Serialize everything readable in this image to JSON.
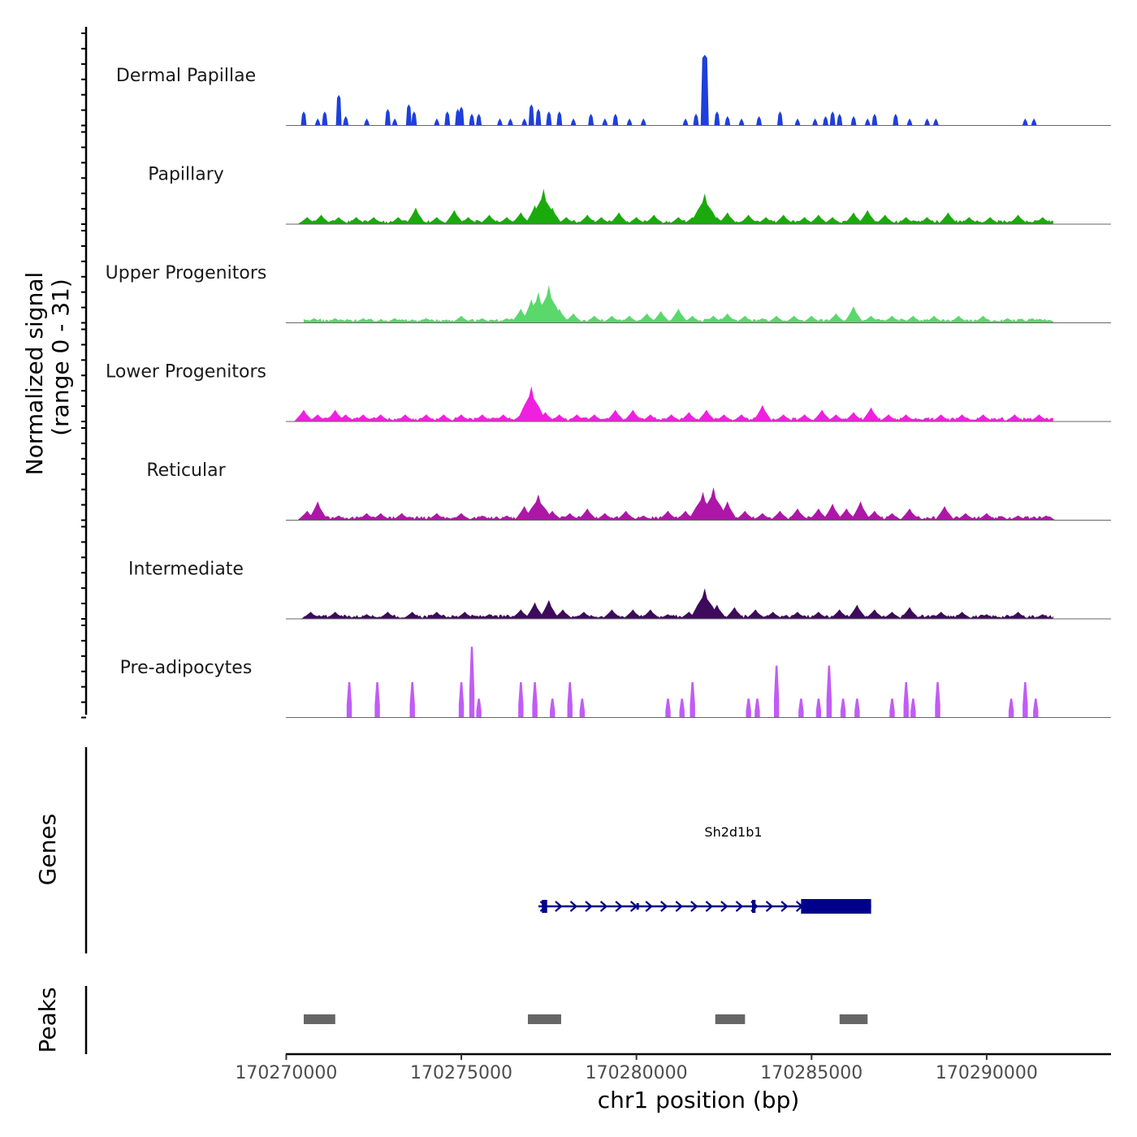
{
  "chart_data": {
    "type": "area",
    "title": "",
    "ylabel_line1": "Normalized signal",
    "ylabel_line2": "(range 0 - 31)",
    "ylim": [
      0,
      31
    ],
    "xlabel": "chr1 position (bp)",
    "xlim": [
      170269990,
      170293550
    ],
    "xticks": [
      170270000,
      170275000,
      170280000,
      170285000,
      170290000
    ],
    "xtick_labels": [
      "170270000",
      "170275000",
      "170280000",
      "170285000",
      "170290000"
    ],
    "genes_label": "Genes",
    "peaks_label": "Peaks",
    "series": [
      {
        "name": "Dermal Papillae",
        "color": "#1E3FDB",
        "style": "sparse",
        "values": [
          [
            170271100,
            6
          ],
          [
            170271500,
            13
          ],
          [
            170271700,
            4
          ],
          [
            170272300,
            3
          ],
          [
            170272900,
            7
          ],
          [
            170273100,
            3
          ],
          [
            170273500,
            9
          ],
          [
            170273650,
            6
          ],
          [
            170274300,
            3
          ],
          [
            170274600,
            6
          ],
          [
            170274900,
            7
          ],
          [
            170275000,
            8
          ],
          [
            170275300,
            5
          ],
          [
            170275500,
            5
          ],
          [
            170276100,
            3
          ],
          [
            170276400,
            3
          ],
          [
            170276800,
            3
          ],
          [
            170277000,
            9
          ],
          [
            170277200,
            7
          ],
          [
            170277500,
            6
          ],
          [
            170277800,
            6
          ],
          [
            170278200,
            3
          ],
          [
            170278700,
            5
          ],
          [
            170279100,
            3
          ],
          [
            170279400,
            5
          ],
          [
            170279800,
            3
          ],
          [
            170280200,
            3
          ],
          [
            170281400,
            3
          ],
          [
            170281700,
            5
          ],
          [
            170281950,
            30
          ],
          [
            170282300,
            6
          ],
          [
            170282600,
            4
          ],
          [
            170283000,
            3
          ],
          [
            170283500,
            4
          ],
          [
            170284100,
            6
          ],
          [
            170284600,
            3
          ],
          [
            170285100,
            3
          ],
          [
            170285400,
            4
          ],
          [
            170285600,
            6
          ],
          [
            170285800,
            5
          ],
          [
            170286200,
            4
          ],
          [
            170286600,
            3
          ],
          [
            170286800,
            5
          ],
          [
            170287400,
            5
          ],
          [
            170287800,
            3
          ],
          [
            170288300,
            3
          ],
          [
            170288550,
            3
          ],
          [
            170291100,
            3
          ],
          [
            170291350,
            3
          ],
          [
            170270500,
            6
          ],
          [
            170270900,
            3
          ]
        ]
      },
      {
        "name": "Papillary",
        "color": "#1AAA0C",
        "style": "dense",
        "values": [
          [
            170270600,
            3
          ],
          [
            170271000,
            4
          ],
          [
            170271500,
            3
          ],
          [
            170272000,
            3
          ],
          [
            170272500,
            3
          ],
          [
            170273200,
            3
          ],
          [
            170273700,
            7
          ],
          [
            170274300,
            3
          ],
          [
            170274800,
            6
          ],
          [
            170275200,
            3
          ],
          [
            170275800,
            4
          ],
          [
            170276300,
            3
          ],
          [
            170276700,
            5
          ],
          [
            170277100,
            8
          ],
          [
            170277350,
            15
          ],
          [
            170277600,
            7
          ],
          [
            170278000,
            3
          ],
          [
            170278600,
            4
          ],
          [
            170279000,
            3
          ],
          [
            170279500,
            5
          ],
          [
            170280000,
            3
          ],
          [
            170280500,
            4
          ],
          [
            170281200,
            3
          ],
          [
            170281600,
            3
          ],
          [
            170281950,
            13
          ],
          [
            170282300,
            3
          ],
          [
            170282600,
            5
          ],
          [
            170283200,
            4
          ],
          [
            170283700,
            3
          ],
          [
            170284200,
            4
          ],
          [
            170284800,
            3
          ],
          [
            170285200,
            4
          ],
          [
            170285600,
            3
          ],
          [
            170286200,
            5
          ],
          [
            170286600,
            6
          ],
          [
            170287100,
            4
          ],
          [
            170287700,
            3
          ],
          [
            170288300,
            3
          ],
          [
            170288900,
            5
          ],
          [
            170289500,
            3
          ],
          [
            170290100,
            3
          ],
          [
            170290900,
            4
          ],
          [
            170291600,
            3
          ]
        ]
      },
      {
        "name": "Upper Progenitors",
        "color": "#5AD86B",
        "style": "dense",
        "values": [
          [
            170270800,
            2
          ],
          [
            170271400,
            2
          ],
          [
            170272200,
            2
          ],
          [
            170273100,
            2
          ],
          [
            170274000,
            2
          ],
          [
            170275000,
            3
          ],
          [
            170275600,
            2
          ],
          [
            170276300,
            2
          ],
          [
            170276700,
            6
          ],
          [
            170277000,
            10
          ],
          [
            170277200,
            13
          ],
          [
            170277500,
            16
          ],
          [
            170277800,
            6
          ],
          [
            170278200,
            4
          ],
          [
            170278800,
            3
          ],
          [
            170279300,
            3
          ],
          [
            170279800,
            3
          ],
          [
            170280300,
            4
          ],
          [
            170280700,
            5
          ],
          [
            170281200,
            6
          ],
          [
            170281600,
            3
          ],
          [
            170282200,
            3
          ],
          [
            170282600,
            4
          ],
          [
            170283100,
            3
          ],
          [
            170283600,
            2
          ],
          [
            170284000,
            3
          ],
          [
            170284500,
            3
          ],
          [
            170285000,
            3
          ],
          [
            170285700,
            4
          ],
          [
            170286200,
            7
          ],
          [
            170286700,
            3
          ],
          [
            170287300,
            3
          ],
          [
            170287900,
            3
          ],
          [
            170288500,
            3
          ],
          [
            170289200,
            3
          ],
          [
            170289900,
            3
          ],
          [
            170290600,
            2
          ],
          [
            170291300,
            2
          ]
        ]
      },
      {
        "name": "Lower Progenitors",
        "color": "#F020E0",
        "style": "dense",
        "values": [
          [
            170270500,
            5
          ],
          [
            170270900,
            3
          ],
          [
            170271400,
            5
          ],
          [
            170271700,
            3
          ],
          [
            170272200,
            3
          ],
          [
            170272700,
            3
          ],
          [
            170273400,
            3
          ],
          [
            170274000,
            3
          ],
          [
            170274500,
            3
          ],
          [
            170275000,
            3
          ],
          [
            170275600,
            3
          ],
          [
            170276200,
            3
          ],
          [
            170276700,
            3
          ],
          [
            170277000,
            15
          ],
          [
            170277400,
            4
          ],
          [
            170277800,
            3
          ],
          [
            170278300,
            3
          ],
          [
            170278800,
            3
          ],
          [
            170279400,
            5
          ],
          [
            170279900,
            5
          ],
          [
            170280400,
            3
          ],
          [
            170281000,
            3
          ],
          [
            170281500,
            4
          ],
          [
            170282000,
            5
          ],
          [
            170282500,
            3
          ],
          [
            170283000,
            3
          ],
          [
            170283600,
            7
          ],
          [
            170284200,
            3
          ],
          [
            170284800,
            3
          ],
          [
            170285300,
            5
          ],
          [
            170285700,
            3
          ],
          [
            170286200,
            4
          ],
          [
            170286700,
            6
          ],
          [
            170287200,
            3
          ],
          [
            170287700,
            3
          ],
          [
            170288700,
            3
          ],
          [
            170289300,
            3
          ],
          [
            170289900,
            3
          ],
          [
            170290800,
            3
          ],
          [
            170291500,
            3
          ]
        ]
      },
      {
        "name": "Reticular",
        "color": "#AE16A8",
        "style": "dense",
        "values": [
          [
            170270600,
            4
          ],
          [
            170270900,
            8
          ],
          [
            170271500,
            2
          ],
          [
            170272300,
            3
          ],
          [
            170272700,
            3
          ],
          [
            170273300,
            3
          ],
          [
            170274300,
            3
          ],
          [
            170275000,
            3
          ],
          [
            170275600,
            2
          ],
          [
            170276300,
            2
          ],
          [
            170276800,
            6
          ],
          [
            170277200,
            11
          ],
          [
            170277600,
            4
          ],
          [
            170278100,
            3
          ],
          [
            170278600,
            5
          ],
          [
            170279100,
            3
          ],
          [
            170279700,
            4
          ],
          [
            170280200,
            2
          ],
          [
            170280900,
            4
          ],
          [
            170281400,
            4
          ],
          [
            170281900,
            12
          ],
          [
            170282200,
            14
          ],
          [
            170282600,
            8
          ],
          [
            170283100,
            4
          ],
          [
            170283600,
            3
          ],
          [
            170284100,
            4
          ],
          [
            170284600,
            5
          ],
          [
            170285200,
            5
          ],
          [
            170285600,
            7
          ],
          [
            170286000,
            5
          ],
          [
            170286400,
            8
          ],
          [
            170286800,
            4
          ],
          [
            170287300,
            3
          ],
          [
            170287800,
            5
          ],
          [
            170288800,
            6
          ],
          [
            170289400,
            3
          ],
          [
            170290000,
            3
          ],
          [
            170290900,
            2
          ],
          [
            170291700,
            2
          ]
        ]
      },
      {
        "name": "Intermediate",
        "color": "#3D0A5C",
        "style": "dense",
        "values": [
          [
            170270700,
            3
          ],
          [
            170271400,
            3
          ],
          [
            170272300,
            2
          ],
          [
            170272900,
            3
          ],
          [
            170273600,
            3
          ],
          [
            170274300,
            3
          ],
          [
            170275100,
            3
          ],
          [
            170275800,
            2
          ],
          [
            170276700,
            4
          ],
          [
            170277100,
            7
          ],
          [
            170277500,
            8
          ],
          [
            170277900,
            4
          ],
          [
            170278500,
            3
          ],
          [
            170279300,
            4
          ],
          [
            170279900,
            4
          ],
          [
            170280400,
            4
          ],
          [
            170280900,
            2
          ],
          [
            170281500,
            3
          ],
          [
            170281950,
            13
          ],
          [
            170282300,
            6
          ],
          [
            170282800,
            5
          ],
          [
            170283400,
            4
          ],
          [
            170283900,
            3
          ],
          [
            170284600,
            3
          ],
          [
            170285200,
            3
          ],
          [
            170285800,
            4
          ],
          [
            170286300,
            6
          ],
          [
            170286800,
            4
          ],
          [
            170287300,
            3
          ],
          [
            170287800,
            5
          ],
          [
            170288700,
            3
          ],
          [
            170289300,
            3
          ],
          [
            170290000,
            2
          ],
          [
            170290900,
            3
          ],
          [
            170291600,
            2
          ]
        ]
      },
      {
        "name": "Pre-adipocytes",
        "color": "#C05CF6",
        "style": "spike",
        "values": [
          [
            170272600,
            15
          ],
          [
            170273600,
            15
          ],
          [
            170275000,
            15
          ],
          [
            170275300,
            30
          ],
          [
            170275500,
            8
          ],
          [
            170276700,
            15
          ],
          [
            170277100,
            15
          ],
          [
            170277600,
            8
          ],
          [
            170278100,
            15
          ],
          [
            170278450,
            8
          ],
          [
            170280900,
            8
          ],
          [
            170281300,
            8
          ],
          [
            170281600,
            15
          ],
          [
            170283200,
            8
          ],
          [
            170283450,
            8
          ],
          [
            170284000,
            22
          ],
          [
            170284700,
            8
          ],
          [
            170285200,
            8
          ],
          [
            170285500,
            22
          ],
          [
            170285900,
            8
          ],
          [
            170286300,
            8
          ],
          [
            170287300,
            8
          ],
          [
            170287700,
            15
          ],
          [
            170287900,
            8
          ],
          [
            170288600,
            15
          ],
          [
            170290700,
            8
          ],
          [
            170291100,
            15
          ],
          [
            170291400,
            8
          ],
          [
            170271800,
            15
          ]
        ]
      }
    ],
    "gene": {
      "name": "Sh2d1b1",
      "color": "#00008B",
      "strand": "+",
      "start": 170277200,
      "end": 170286700,
      "exons": [
        [
          170277300,
          170277450
        ],
        [
          170280000,
          170280050
        ],
        [
          170283300,
          170283400
        ],
        [
          170284700,
          170286700
        ]
      ]
    },
    "peaks": {
      "color": "#666666",
      "regions": [
        [
          170270500,
          170271400
        ],
        [
          170276900,
          170277850
        ],
        [
          170282250,
          170283100
        ],
        [
          170285800,
          170286600
        ]
      ]
    }
  }
}
